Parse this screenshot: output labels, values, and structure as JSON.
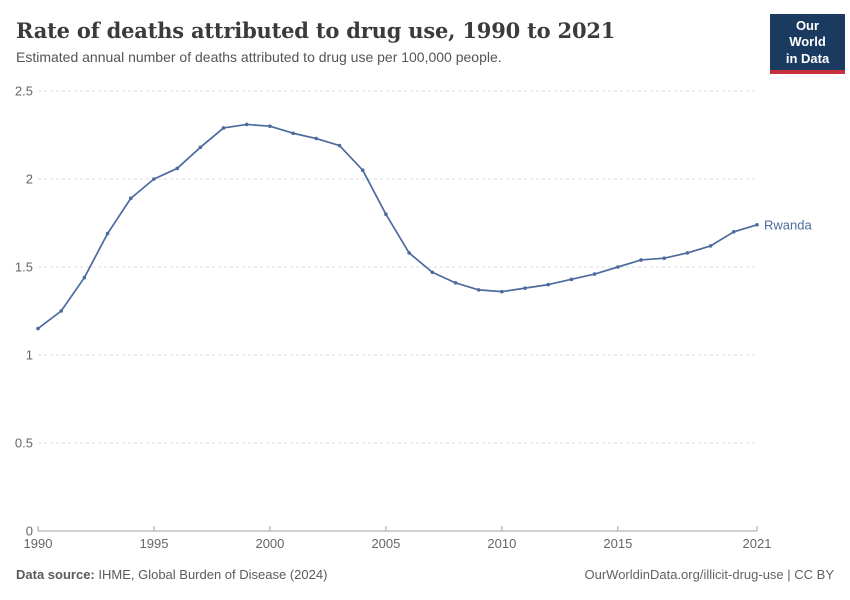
{
  "header": {
    "title": "Rate of deaths attributed to drug use, 1990 to 2021",
    "subtitle": "Estimated annual number of deaths attributed to drug use per 100,000 people.",
    "logo": {
      "line1": "Our World",
      "line2": "in Data",
      "bg_color": "#1B3A5F",
      "accent_color": "#C5303C"
    }
  },
  "chart_data": {
    "type": "line",
    "title": "Rate of deaths attributed to drug use, 1990 to 2021",
    "xlabel": "",
    "ylabel": "",
    "xlim": [
      1990,
      2021
    ],
    "ylim": [
      0,
      2.5
    ],
    "xticks": [
      1990,
      1995,
      2000,
      2005,
      2010,
      2015,
      2021
    ],
    "xtick_labels": [
      "1990",
      "1995",
      "2000",
      "2005",
      "2010",
      "2015",
      "2021"
    ],
    "yticks": [
      0,
      0.5,
      1,
      1.5,
      2,
      2.5
    ],
    "ytick_labels": [
      "0",
      "0.5",
      "1",
      "1.5",
      "2",
      "2.5"
    ],
    "grid": "horizontal-dashed",
    "legend_position": "end-of-line-label",
    "series": [
      {
        "name": "Rwanda",
        "color": "#4C6A9C",
        "x": [
          1990,
          1991,
          1992,
          1993,
          1994,
          1995,
          1996,
          1997,
          1998,
          1999,
          2000,
          2001,
          2002,
          2003,
          2004,
          2005,
          2006,
          2007,
          2008,
          2009,
          2010,
          2011,
          2012,
          2013,
          2014,
          2015,
          2016,
          2017,
          2018,
          2019,
          2020,
          2021
        ],
        "values": [
          1.15,
          1.25,
          1.44,
          1.69,
          1.89,
          2.0,
          2.06,
          2.18,
          2.29,
          2.31,
          2.3,
          2.26,
          2.23,
          2.19,
          2.05,
          1.8,
          1.58,
          1.47,
          1.41,
          1.37,
          1.36,
          1.38,
          1.4,
          1.43,
          1.46,
          1.5,
          1.54,
          1.55,
          1.58,
          1.62,
          1.7,
          1.74
        ]
      }
    ]
  },
  "footer": {
    "datasource_label": "Data source:",
    "datasource_value": " IHME, Global Burden of Disease (2024)",
    "link": "OurWorldinData.org/illicit-drug-use",
    "separator": " | ",
    "license": "CC BY"
  }
}
